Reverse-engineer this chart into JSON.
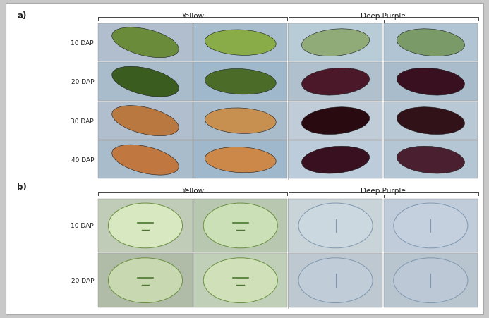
{
  "fig_width": 6.93,
  "fig_height": 4.52,
  "bg_color": "#c8c8c8",
  "panel_bg": "#ffffff",
  "title_a": "a)",
  "title_b": "b)",
  "yellow_label": "Yellow",
  "deep_purple_label": "Deep Purple",
  "dap_labels_a": [
    "10 DAP",
    "20 DAP",
    "30 DAP",
    "40 DAP"
  ],
  "dap_labels_b": [
    "10 DAP",
    "20 DAP"
  ],
  "label_color": "#222222",
  "font_size_label": 7.5,
  "font_size_dap": 6.5,
  "font_size_panel": 8.5,
  "bracket_color": "#444444",
  "separator_color": "#999999",
  "ye_seed_colors": [
    [
      "#6a8c3a",
      "#8aac48"
    ],
    [
      "#3a5c1e",
      "#4a6c28"
    ],
    [
      "#b87840",
      "#c89050"
    ],
    [
      "#c07840",
      "#cc8848"
    ]
  ],
  "dp_seed_colors": [
    [
      "#90aa78",
      "#7a9a68"
    ],
    [
      "#4a1828",
      "#381020"
    ],
    [
      "#280a10",
      "#301218"
    ],
    [
      "#381020",
      "#4a2030"
    ]
  ],
  "cell_bg_a": [
    [
      "#b0bece",
      "#a8bece",
      "#b8ccd8",
      "#b0c4d4"
    ],
    [
      "#a8bccc",
      "#a0b8cc",
      "#b0c0cc",
      "#a8bccc"
    ],
    [
      "#b0bece",
      "#a8bccc",
      "#c0ccd8",
      "#b8c8d4"
    ],
    [
      "#a8bccc",
      "#a0b8cc",
      "#bcccda",
      "#b4c6d4"
    ]
  ],
  "xs_bg_b": [
    [
      "#c0ccb8",
      "#b8c8b0",
      "#c8d4d8",
      "#c0ccda"
    ],
    [
      "#b0bca8",
      "#c0d0b8",
      "#bec8d0",
      "#b8c4ce"
    ]
  ],
  "xs_seed_colors_b": [
    [
      "#d8e8c0",
      "#cce0b8",
      "#ccd8e0",
      "#c4d0de"
    ],
    [
      "#c8d8b0",
      "#d0e0b8",
      "#c0ccd8",
      "#bcc8d6"
    ]
  ]
}
